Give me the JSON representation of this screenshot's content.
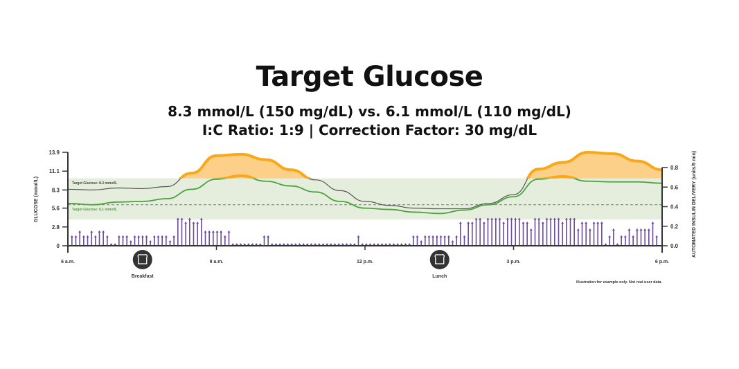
{
  "header": {
    "title": "Target Glucose",
    "subtitle_line1": "8.3 mmol/L (150 mg/dL) vs. 6.1 mmol/L (110 mg/dL)",
    "subtitle_line2": "I:C Ratio: 1:9 | Correction Factor: 30 mg/dL"
  },
  "colors": {
    "target_band": "#e5eddd",
    "line_8_3": "#555555",
    "line_6_1": "#4aa33c",
    "above_range_fill": "#fdd08a",
    "above_range_stroke": "#f9a81a",
    "insulin": "#6a4a9c",
    "axis": "#333333",
    "dashed": "#777777"
  },
  "chart_data": {
    "type": "line",
    "title": "Target Glucose",
    "xlabel": "",
    "ylabel": "GLUCOSE (mmol/L)",
    "y2label": "AUTOMATED INSULIN DELIVERY (units/5 min)",
    "x_ticks": [
      "6 a.m.",
      "9 a.m.",
      "12 p.m.",
      "3 p.m.",
      "6 p.m."
    ],
    "y_ticks": [
      "0",
      "2.8",
      "5.6",
      "8.3",
      "11.1",
      "13.9"
    ],
    "y_tick_values": [
      0,
      2.8,
      5.6,
      8.3,
      11.1,
      13.9
    ],
    "y2_ticks": [
      "0.0",
      "0.2",
      "0.4",
      "0.6",
      "0.8"
    ],
    "y2_tick_values": [
      0,
      0.2,
      0.4,
      0.6,
      0.8
    ],
    "ylim": [
      0,
      13.9
    ],
    "y2lim": [
      0,
      0.8
    ],
    "target_range": [
      3.9,
      10.0
    ],
    "grid": false,
    "annotations": {
      "band_label_top": "Target Glucose: 8.3 mmol/L",
      "band_label_bottom": "Target Glucose: 6.1 mmol/L",
      "dashed_line_value": 6.1,
      "disclaimer": "Illustration for example only. Not real user data."
    },
    "meals": [
      {
        "label": "Breakfast",
        "hour": 7.5
      },
      {
        "label": "Lunch",
        "hour": 13.5
      }
    ],
    "x_hours": [
      6.0,
      6.5,
      7.0,
      7.5,
      8.0,
      8.5,
      9.0,
      9.5,
      10.0,
      10.5,
      11.0,
      11.5,
      12.0,
      12.5,
      13.0,
      13.5,
      14.0,
      14.5,
      15.0,
      15.5,
      16.0,
      16.5,
      17.0,
      17.5,
      18.0
    ],
    "series": [
      {
        "name": "Target Glucose 8.3 mmol/L",
        "values": [
          8.4,
          8.3,
          8.6,
          8.5,
          8.8,
          10.8,
          13.4,
          13.6,
          12.8,
          11.3,
          9.8,
          8.2,
          6.6,
          6.0,
          5.6,
          5.5,
          5.5,
          6.3,
          7.6,
          11.4,
          12.4,
          13.9,
          13.7,
          12.6,
          11.3
        ]
      },
      {
        "name": "Target Glucose 6.1 mmol/L",
        "values": [
          6.3,
          6.1,
          6.5,
          6.6,
          7.0,
          8.4,
          9.9,
          10.4,
          9.6,
          8.9,
          8.0,
          6.6,
          5.6,
          5.4,
          5.0,
          4.8,
          5.3,
          6.1,
          7.3,
          9.9,
          10.3,
          9.6,
          9.5,
          9.5,
          9.3
        ]
      }
    ],
    "insulin_bars": {
      "name": "Automated Insulin Delivery",
      "interval_minutes": 5,
      "values": [
        0.1,
        0.1,
        0.15,
        0.1,
        0.1,
        0.15,
        0.1,
        0.15,
        0.15,
        0.1,
        0.02,
        0.02,
        0.1,
        0.1,
        0.1,
        0.05,
        0.1,
        0.1,
        0.1,
        0.1,
        0.05,
        0.1,
        0.1,
        0.1,
        0.1,
        0.05,
        0.1,
        0.28,
        0.28,
        0.24,
        0.28,
        0.24,
        0.24,
        0.28,
        0.15,
        0.15,
        0.15,
        0.15,
        0.15,
        0.1,
        0.15,
        0.02,
        0.02,
        0.02,
        0.02,
        0.02,
        0.02,
        0.02,
        0.02,
        0.1,
        0.1,
        0.02,
        0.02,
        0.02,
        0.02,
        0.02,
        0.02,
        0.02,
        0.02,
        0.02,
        0.02,
        0.02,
        0.02,
        0.02,
        0.02,
        0.02,
        0.02,
        0.02,
        0.02,
        0.02,
        0.02,
        0.02,
        0.02,
        0.1,
        0.02,
        0.02,
        0.02,
        0.02,
        0.02,
        0.02,
        0.02,
        0.02,
        0.02,
        0.02,
        0.02,
        0.02,
        0.02,
        0.1,
        0.1,
        0.05,
        0.1,
        0.1,
        0.1,
        0.1,
        0.1,
        0.1,
        0.1,
        0.05,
        0.1,
        0.24,
        0.1,
        0.24,
        0.24,
        0.28,
        0.28,
        0.24,
        0.28,
        0.28,
        0.28,
        0.28,
        0.24,
        0.28,
        0.28,
        0.28,
        0.28,
        0.24,
        0.24,
        0.17,
        0.28,
        0.28,
        0.24,
        0.28,
        0.28,
        0.28,
        0.28,
        0.24,
        0.28,
        0.28,
        0.28,
        0.17,
        0.24,
        0.24,
        0.17,
        0.24,
        0.24,
        0.24,
        0.02,
        0.1,
        0.17,
        0.02,
        0.1,
        0.1,
        0.17,
        0.1,
        0.17,
        0.17,
        0.17,
        0.17,
        0.24,
        0.1
      ]
    }
  }
}
